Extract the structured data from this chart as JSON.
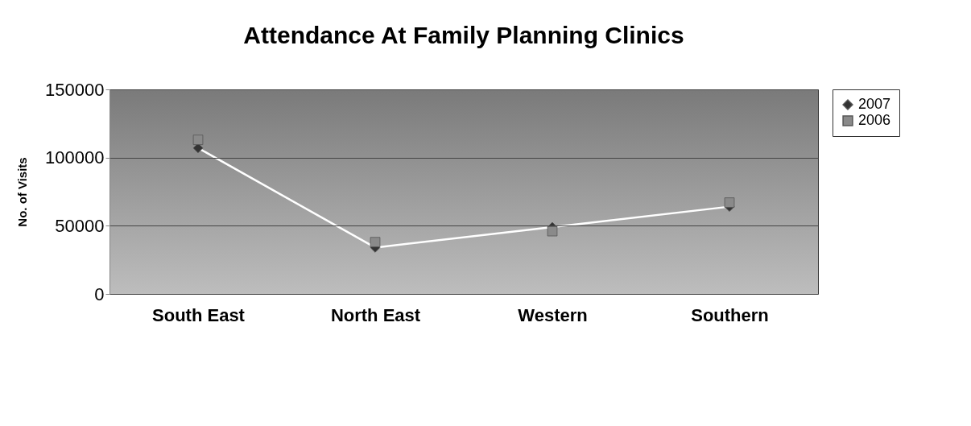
{
  "chart_data": {
    "type": "line",
    "title": "Attendance At Family Planning Clinics",
    "ylabel": "No. of Visits",
    "categories": [
      "South East",
      "North East",
      "Western",
      "Southern"
    ],
    "series": [
      {
        "name": "2007",
        "color": "#333333",
        "marker": "diamond",
        "values": [
          107000,
          34000,
          49000,
          64000
        ]
      },
      {
        "name": "2006",
        "type": "scatter",
        "color": "#8a8a8a",
        "marker": "square",
        "values": [
          113000,
          38000,
          46000,
          67000
        ]
      }
    ],
    "ylim": [
      0,
      150000
    ],
    "yticks": [
      0,
      50000,
      100000,
      150000
    ],
    "grid": "y",
    "legend": "right"
  }
}
